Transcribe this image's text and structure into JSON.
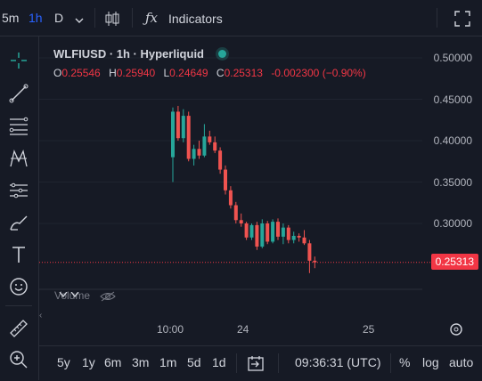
{
  "toolbar": {
    "intervals": [
      "5m",
      "1h",
      "D"
    ],
    "indicators_label": "Indicators"
  },
  "legend": {
    "symbol": "WLFIUSD · 1h · Hyperliquid",
    "o_label": "O",
    "o_value": "0.25546",
    "h_label": "H",
    "h_value": "0.25940",
    "l_label": "L",
    "l_value": "0.24649",
    "c_label": "C",
    "c_value": "0.25313",
    "change": "-0.002300 (−0.90%)"
  },
  "price_axis": {
    "ticks": [
      "0.50000",
      "0.45000",
      "0.40000",
      "0.35000",
      "0.30000"
    ],
    "current": "0.25313"
  },
  "time_axis": {
    "ticks": [
      "10:00",
      "24",
      "25"
    ]
  },
  "volume_label": "Volume",
  "bottom": {
    "ranges": [
      "5y",
      "1y",
      "6m",
      "3m",
      "1m",
      "5d",
      "1d"
    ],
    "clock": "09:36:31 (UTC)",
    "percent": "%",
    "log": "log",
    "auto": "auto"
  },
  "colors": {
    "up": "#26a69a",
    "down": "#ef5350",
    "accent": "#f23645",
    "bg": "#161a25"
  },
  "chart_data": {
    "type": "candlestick",
    "ylim": [
      0.23,
      0.52
    ],
    "candles": [
      {
        "o": 0.38,
        "h": 0.44,
        "l": 0.35,
        "c": 0.435
      },
      {
        "o": 0.435,
        "h": 0.442,
        "l": 0.4,
        "c": 0.403
      },
      {
        "o": 0.403,
        "h": 0.438,
        "l": 0.398,
        "c": 0.43
      },
      {
        "o": 0.43,
        "h": 0.435,
        "l": 0.375,
        "c": 0.378
      },
      {
        "o": 0.378,
        "h": 0.395,
        "l": 0.37,
        "c": 0.39
      },
      {
        "o": 0.39,
        "h": 0.4,
        "l": 0.378,
        "c": 0.382
      },
      {
        "o": 0.382,
        "h": 0.42,
        "l": 0.38,
        "c": 0.405
      },
      {
        "o": 0.405,
        "h": 0.412,
        "l": 0.395,
        "c": 0.398
      },
      {
        "o": 0.398,
        "h": 0.405,
        "l": 0.385,
        "c": 0.388
      },
      {
        "o": 0.388,
        "h": 0.392,
        "l": 0.36,
        "c": 0.365
      },
      {
        "o": 0.365,
        "h": 0.37,
        "l": 0.335,
        "c": 0.34
      },
      {
        "o": 0.34,
        "h": 0.345,
        "l": 0.318,
        "c": 0.322
      },
      {
        "o": 0.322,
        "h": 0.326,
        "l": 0.3,
        "c": 0.304
      },
      {
        "o": 0.304,
        "h": 0.312,
        "l": 0.296,
        "c": 0.3
      },
      {
        "o": 0.3,
        "h": 0.302,
        "l": 0.28,
        "c": 0.283
      },
      {
        "o": 0.283,
        "h": 0.3,
        "l": 0.28,
        "c": 0.298
      },
      {
        "o": 0.298,
        "h": 0.302,
        "l": 0.268,
        "c": 0.272
      },
      {
        "o": 0.272,
        "h": 0.305,
        "l": 0.27,
        "c": 0.3
      },
      {
        "o": 0.3,
        "h": 0.303,
        "l": 0.275,
        "c": 0.278
      },
      {
        "o": 0.278,
        "h": 0.305,
        "l": 0.276,
        "c": 0.302
      },
      {
        "o": 0.302,
        "h": 0.306,
        "l": 0.28,
        "c": 0.284
      },
      {
        "o": 0.284,
        "h": 0.3,
        "l": 0.275,
        "c": 0.295
      },
      {
        "o": 0.295,
        "h": 0.298,
        "l": 0.276,
        "c": 0.28
      },
      {
        "o": 0.28,
        "h": 0.29,
        "l": 0.276,
        "c": 0.285
      },
      {
        "o": 0.285,
        "h": 0.288,
        "l": 0.278,
        "c": 0.283
      },
      {
        "o": 0.283,
        "h": 0.292,
        "l": 0.274,
        "c": 0.276
      },
      {
        "o": 0.276,
        "h": 0.28,
        "l": 0.24,
        "c": 0.255
      },
      {
        "o": 0.255,
        "h": 0.26,
        "l": 0.246,
        "c": 0.253
      }
    ]
  }
}
